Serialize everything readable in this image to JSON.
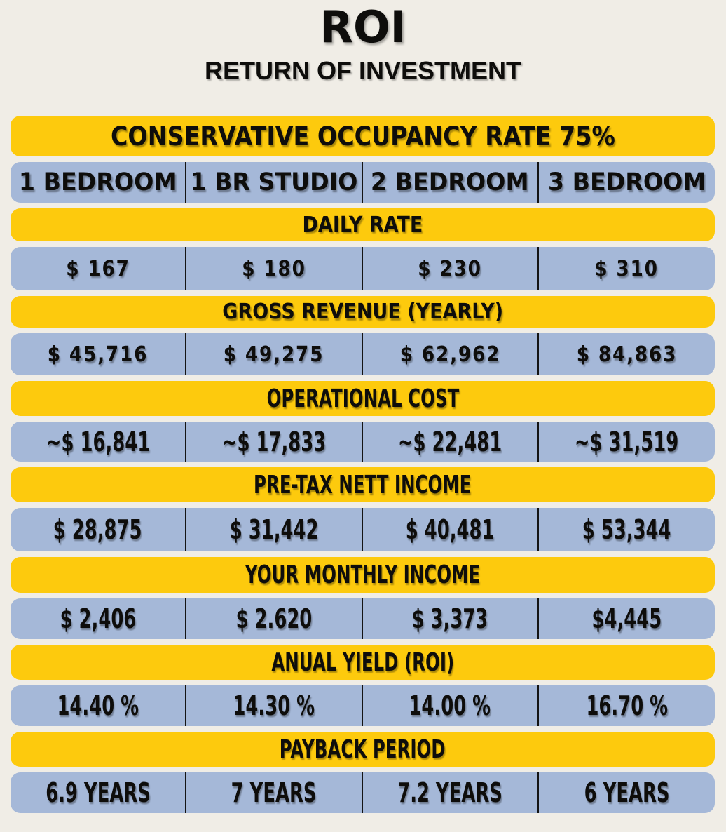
{
  "title": "ROI",
  "subtitle": "RETURN OF INVESTMENT",
  "banner": "CONSERVATIVE OCCUPANCY RATE 75%",
  "columns": [
    "1 BEDROOM",
    "1 BR STUDIO",
    "2 BEDROOM",
    "3 BEDROOM"
  ],
  "colors": {
    "yellow": "#fdca0d",
    "blue": "#a5b8d8",
    "background": "#f0ede6",
    "text": "#0e0d0b"
  },
  "chart_data": {
    "type": "table",
    "title": "ROI — RETURN OF INVESTMENT",
    "banner": "CONSERVATIVE OCCUPANCY RATE 75%",
    "columns": [
      "1 BEDROOM",
      "1 BR STUDIO",
      "2 BEDROOM",
      "3 BEDROOM"
    ],
    "rows": [
      {
        "label": "DAILY RATE",
        "values": [
          "$ 167",
          "$ 180",
          "$ 230",
          "$ 310"
        ]
      },
      {
        "label": "GROSS REVENUE (YEARLY)",
        "values": [
          "$ 45,716",
          "$ 49,275",
          "$ 62,962",
          "$ 84,863"
        ]
      },
      {
        "label": "OPERATIONAL COST",
        "values": [
          "~$ 16,841",
          "~$ 17,833",
          "~$ 22,481",
          "~$ 31,519"
        ]
      },
      {
        "label": "PRE-TAX NETT INCOME",
        "values": [
          "$ 28,875",
          "$ 31,442",
          "$ 40,481",
          "$ 53,344"
        ]
      },
      {
        "label": "YOUR MONTHLY INCOME",
        "values": [
          "$ 2,406",
          "$ 2.620",
          "$ 3,373",
          "$4,445"
        ]
      },
      {
        "label": "ANUAL YIELD (ROI)",
        "values": [
          "14.40 %",
          "14.30 %",
          "14.00 %",
          "16.70 %"
        ]
      },
      {
        "label": "PAYBACK PERIOD",
        "values": [
          "6.9 YEARS",
          "7 YEARS",
          "7.2 YEARS",
          "6 YEARS"
        ]
      }
    ]
  }
}
